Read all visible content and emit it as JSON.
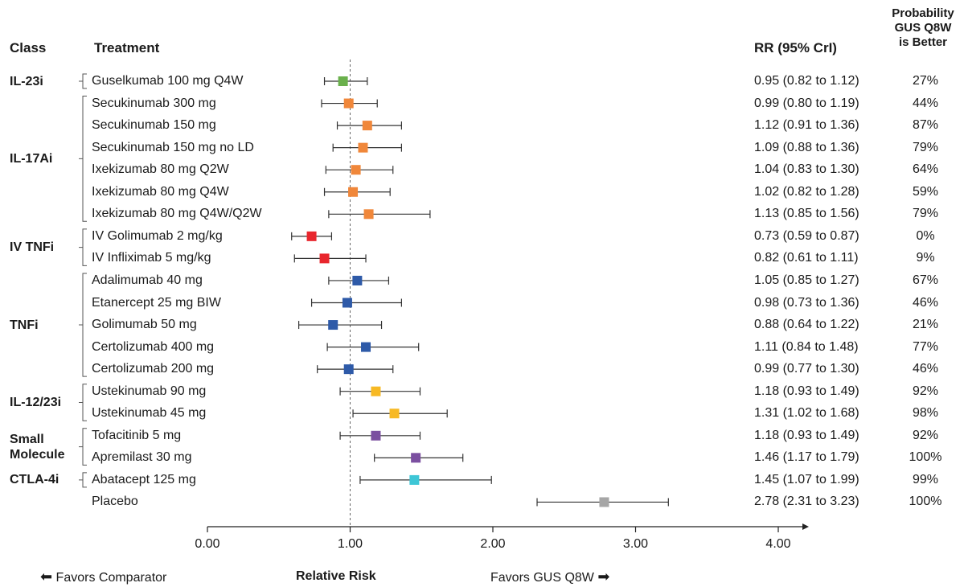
{
  "headers": {
    "class": "Class",
    "treatment": "Treatment",
    "rr": "RR (95% CrI)",
    "probability": [
      "Probability",
      "GUS Q8W",
      "is Better"
    ]
  },
  "classes": [
    {
      "label": "IL-23i",
      "rows": [
        0,
        0
      ]
    },
    {
      "label": "IL-17Ai",
      "rows": [
        1,
        6
      ]
    },
    {
      "label": "IV TNFi",
      "rows": [
        7,
        8
      ]
    },
    {
      "label": "TNFi",
      "rows": [
        9,
        13
      ]
    },
    {
      "label": "IL-12/23i",
      "rows": [
        14,
        15
      ]
    },
    {
      "label": "Small\nMolecule",
      "rows": [
        16,
        17
      ]
    },
    {
      "label": "CTLA-4i",
      "rows": [
        18,
        18
      ]
    }
  ],
  "chart_data": {
    "type": "forest",
    "xlabel": "Relative Risk",
    "xlim": [
      0,
      4.2
    ],
    "xticks": [
      0,
      1,
      2,
      3,
      4
    ],
    "xtick_labels": [
      "0.00",
      "1.00",
      "2.00",
      "3.00",
      "4.00"
    ],
    "reference_line": 1.0,
    "left_annotation": "Favors Comparator",
    "right_annotation": "Favors GUS Q8W",
    "rows": [
      {
        "treatment": "Guselkumab 100 mg Q4W",
        "rr": 0.95,
        "lo": 0.82,
        "hi": 1.12,
        "rr_text": "0.95 (0.82 to 1.12)",
        "prob": "27%",
        "color": "#6ab04c"
      },
      {
        "treatment": "Secukinumab 300 mg",
        "rr": 0.99,
        "lo": 0.8,
        "hi": 1.19,
        "rr_text": "0.99 (0.80 to 1.19)",
        "prob": "44%",
        "color": "#f0873a"
      },
      {
        "treatment": "Secukinumab 150 mg",
        "rr": 1.12,
        "lo": 0.91,
        "hi": 1.36,
        "rr_text": "1.12 (0.91 to 1.36)",
        "prob": "87%",
        "color": "#f0873a"
      },
      {
        "treatment": "Secukinumab 150 mg no LD",
        "rr": 1.09,
        "lo": 0.88,
        "hi": 1.36,
        "rr_text": "1.09 (0.88 to 1.36)",
        "prob": "79%",
        "color": "#f0873a"
      },
      {
        "treatment": "Ixekizumab 80 mg Q2W",
        "rr": 1.04,
        "lo": 0.83,
        "hi": 1.3,
        "rr_text": "1.04 (0.83 to 1.30)",
        "prob": "64%",
        "color": "#f0873a"
      },
      {
        "treatment": "Ixekizumab 80 mg Q4W",
        "rr": 1.02,
        "lo": 0.82,
        "hi": 1.28,
        "rr_text": "1.02 (0.82 to 1.28)",
        "prob": "59%",
        "color": "#f0873a"
      },
      {
        "treatment": "Ixekizumab 80 mg Q4W/Q2W",
        "rr": 1.13,
        "lo": 0.85,
        "hi": 1.56,
        "rr_text": "1.13 (0.85 to 1.56)",
        "prob": "79%",
        "color": "#f0873a"
      },
      {
        "treatment": "IV Golimumab 2 mg/kg",
        "rr": 0.73,
        "lo": 0.59,
        "hi": 0.87,
        "rr_text": "0.73 (0.59 to 0.87)",
        "prob": "0%",
        "color": "#e8262d"
      },
      {
        "treatment": "IV Infliximab 5 mg/kg",
        "rr": 0.82,
        "lo": 0.61,
        "hi": 1.11,
        "rr_text": "0.82 (0.61 to 1.11)",
        "prob": "9%",
        "color": "#e8262d"
      },
      {
        "treatment": "Adalimumab 40 mg",
        "rr": 1.05,
        "lo": 0.85,
        "hi": 1.27,
        "rr_text": "1.05 (0.85 to 1.27)",
        "prob": "67%",
        "color": "#2e5aa8"
      },
      {
        "treatment": "Etanercept 25 mg BIW",
        "rr": 0.98,
        "lo": 0.73,
        "hi": 1.36,
        "rr_text": "0.98 (0.73 to 1.36)",
        "prob": "46%",
        "color": "#2e5aa8"
      },
      {
        "treatment": "Golimumab 50 mg",
        "rr": 0.88,
        "lo": 0.64,
        "hi": 1.22,
        "rr_text": "0.88 (0.64 to 1.22)",
        "prob": "21%",
        "color": "#2e5aa8"
      },
      {
        "treatment": "Certolizumab 400 mg",
        "rr": 1.11,
        "lo": 0.84,
        "hi": 1.48,
        "rr_text": "1.11 (0.84 to 1.48)",
        "prob": "77%",
        "color": "#2e5aa8"
      },
      {
        "treatment": "Certolizumab 200 mg",
        "rr": 0.99,
        "lo": 0.77,
        "hi": 1.3,
        "rr_text": "0.99 (0.77 to 1.30)",
        "prob": "46%",
        "color": "#2e5aa8"
      },
      {
        "treatment": "Ustekinumab 90 mg",
        "rr": 1.18,
        "lo": 0.93,
        "hi": 1.49,
        "rr_text": "1.18 (0.93 to 1.49)",
        "prob": "92%",
        "color": "#f7b924"
      },
      {
        "treatment": "Ustekinumab 45 mg",
        "rr": 1.31,
        "lo": 1.02,
        "hi": 1.68,
        "rr_text": "1.31 (1.02 to 1.68)",
        "prob": "98%",
        "color": "#f7b924"
      },
      {
        "treatment": "Tofacitinib 5 mg",
        "rr": 1.18,
        "lo": 0.93,
        "hi": 1.49,
        "rr_text": "1.18 (0.93 to 1.49)",
        "prob": "92%",
        "color": "#7b4fa0"
      },
      {
        "treatment": "Apremilast 30 mg",
        "rr": 1.46,
        "lo": 1.17,
        "hi": 1.79,
        "rr_text": "1.46 (1.17 to 1.79)",
        "prob": "100%",
        "color": "#7b4fa0"
      },
      {
        "treatment": "Abatacept 125 mg",
        "rr": 1.45,
        "lo": 1.07,
        "hi": 1.99,
        "rr_text": "1.45 (1.07 to 1.99)",
        "prob": "99%",
        "color": "#3ec6d6"
      },
      {
        "treatment": "Placebo",
        "rr": 2.78,
        "lo": 2.31,
        "hi": 3.23,
        "rr_text": "2.78 (2.31 to 3.23)",
        "prob": "100%",
        "color": "#a6a6a6"
      }
    ]
  }
}
